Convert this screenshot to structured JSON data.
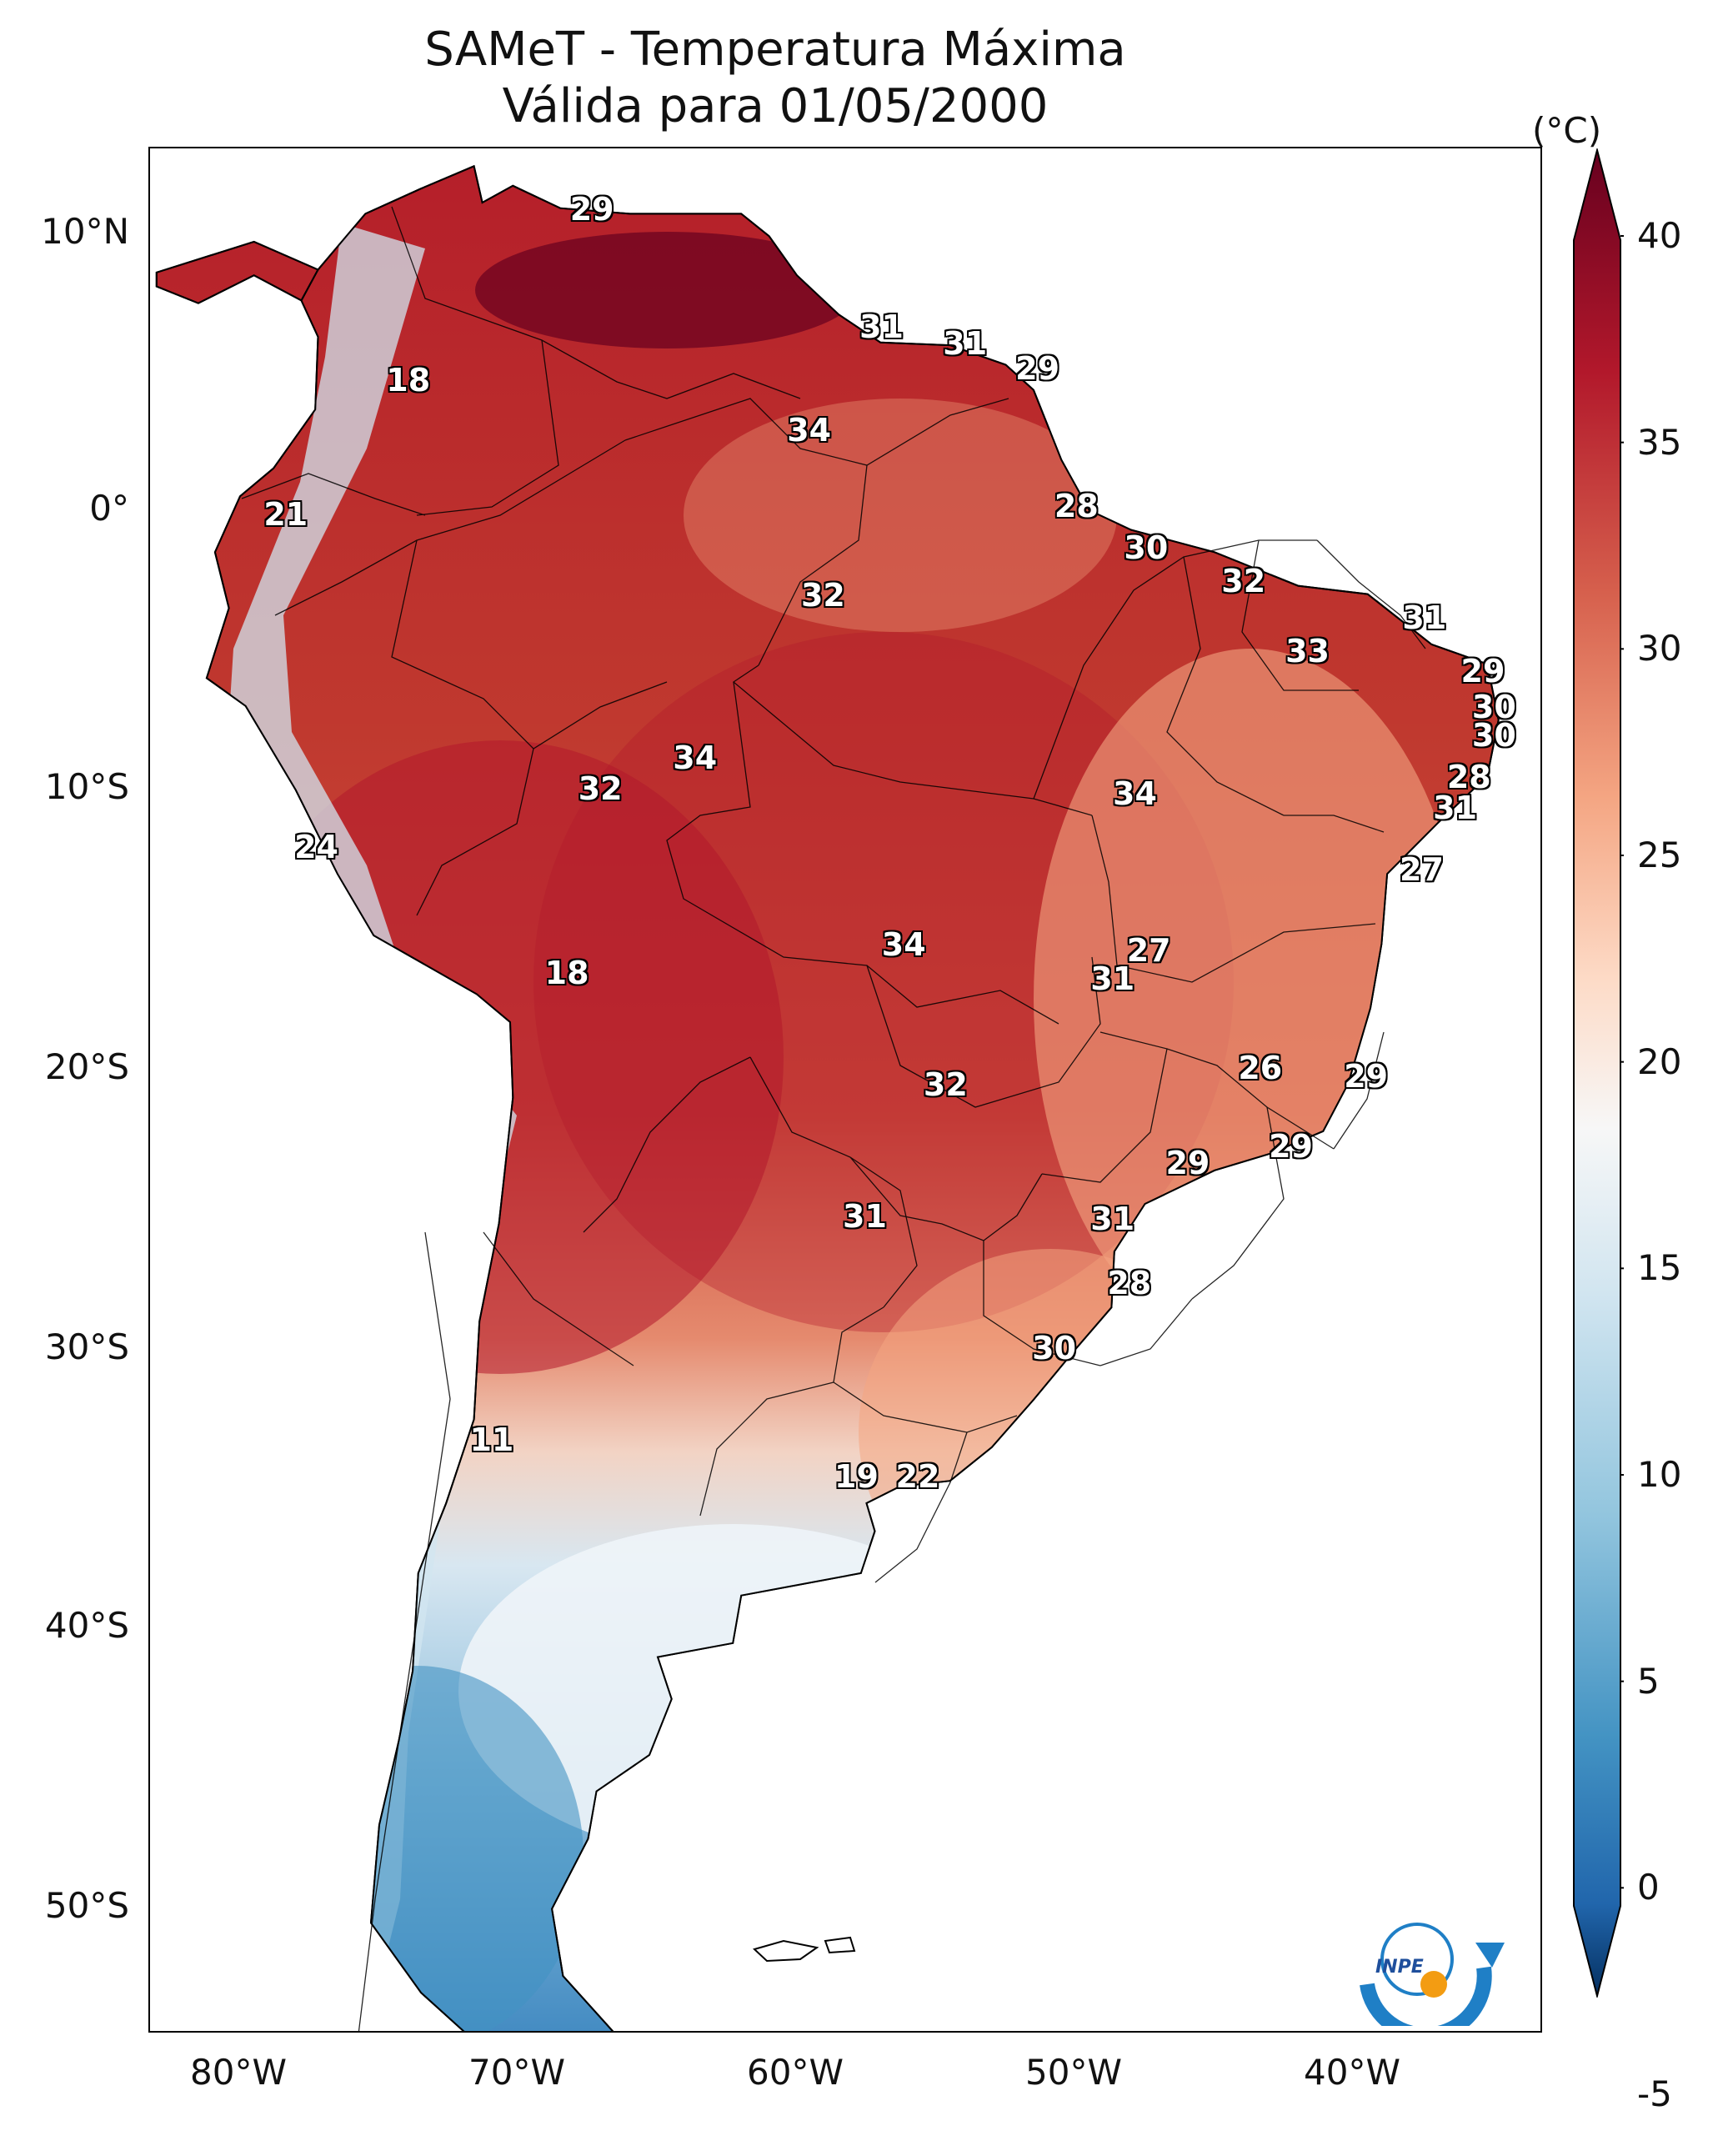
{
  "title": {
    "line1": "SAMeT - Temperatura Máxima",
    "line2": "Válida para 01/05/2000"
  },
  "axes": {
    "lat_ticks": [
      "10°N",
      "0°",
      "10°S",
      "20°S",
      "30°S",
      "40°S",
      "50°S"
    ],
    "lon_ticks": [
      "80°W",
      "70°W",
      "60°W",
      "50°W",
      "40°W"
    ]
  },
  "colorbar": {
    "unit": "(°C)",
    "ticks": [
      "40",
      "35",
      "30",
      "25",
      "20",
      "15",
      "10",
      "5",
      "0",
      "-5"
    ],
    "range": [
      -5,
      40
    ],
    "colors": [
      "#08306b",
      "#2166ac",
      "#67a9cf",
      "#d1e5f0",
      "#f7f7f7",
      "#fddbc7",
      "#ef8a62",
      "#d6604d",
      "#b2182b",
      "#67001f"
    ]
  },
  "map_labels": [
    {
      "text": "29",
      "lon": -67.3,
      "lat": 10.7
    },
    {
      "text": "31",
      "lon": -56.9,
      "lat": 6.5
    },
    {
      "text": "31",
      "lon": -53.9,
      "lat": 5.9
    },
    {
      "text": "29",
      "lon": -51.3,
      "lat": 5.0
    },
    {
      "text": "18",
      "lon": -73.9,
      "lat": 4.6
    },
    {
      "text": "34",
      "lon": -59.5,
      "lat": 2.8
    },
    {
      "text": "28",
      "lon": -49.9,
      "lat": 0.1
    },
    {
      "text": "21",
      "lon": -78.3,
      "lat": -0.2
    },
    {
      "text": "30",
      "lon": -47.4,
      "lat": -1.4
    },
    {
      "text": "32",
      "lon": -59.0,
      "lat": -3.1
    },
    {
      "text": "32",
      "lon": -43.9,
      "lat": -2.6
    },
    {
      "text": "31",
      "lon": -37.4,
      "lat": -3.9
    },
    {
      "text": "33",
      "lon": -41.6,
      "lat": -5.1
    },
    {
      "text": "29",
      "lon": -35.3,
      "lat": -5.8
    },
    {
      "text": "30",
      "lon": -34.9,
      "lat": -7.1
    },
    {
      "text": "30",
      "lon": -34.9,
      "lat": -8.1
    },
    {
      "text": "34",
      "lon": -63.6,
      "lat": -8.9
    },
    {
      "text": "32",
      "lon": -67.0,
      "lat": -10.0
    },
    {
      "text": "34",
      "lon": -47.8,
      "lat": -10.2
    },
    {
      "text": "28",
      "lon": -35.8,
      "lat": -9.6
    },
    {
      "text": "31",
      "lon": -36.3,
      "lat": -10.7
    },
    {
      "text": "24",
      "lon": -77.2,
      "lat": -12.1
    },
    {
      "text": "27",
      "lon": -37.5,
      "lat": -12.9
    },
    {
      "text": "34",
      "lon": -56.1,
      "lat": -15.6
    },
    {
      "text": "27",
      "lon": -47.3,
      "lat": -15.8
    },
    {
      "text": "31",
      "lon": -48.6,
      "lat": -16.8
    },
    {
      "text": "18",
      "lon": -68.2,
      "lat": -16.6
    },
    {
      "text": "26",
      "lon": -43.3,
      "lat": -20.0
    },
    {
      "text": "29",
      "lon": -39.5,
      "lat": -20.3
    },
    {
      "text": "32",
      "lon": -54.6,
      "lat": -20.6
    },
    {
      "text": "29",
      "lon": -42.2,
      "lat": -22.8
    },
    {
      "text": "29",
      "lon": -45.9,
      "lat": -23.4
    },
    {
      "text": "31",
      "lon": -57.5,
      "lat": -25.3
    },
    {
      "text": "31",
      "lon": -48.6,
      "lat": -25.4
    },
    {
      "text": "28",
      "lon": -48.0,
      "lat": -27.7
    },
    {
      "text": "30",
      "lon": -50.7,
      "lat": -30.0
    },
    {
      "text": "11",
      "lon": -70.9,
      "lat": -33.3
    },
    {
      "text": "19",
      "lon": -57.8,
      "lat": -34.6
    },
    {
      "text": "22",
      "lon": -55.6,
      "lat": -34.6
    }
  ],
  "logo_text": "INPE"
}
